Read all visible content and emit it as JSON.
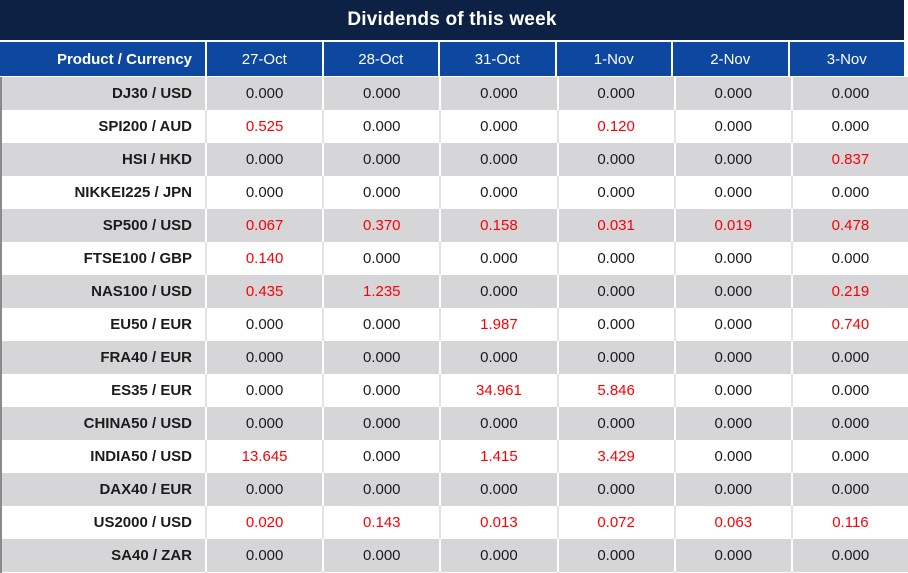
{
  "title": "Dividends of this week",
  "table": {
    "corner_header": "Product / Currency",
    "date_headers": [
      "27-Oct",
      "28-Oct",
      "31-Oct",
      "1-Nov",
      "2-Nov",
      "3-Nov"
    ],
    "rows": [
      {
        "product": "DJ30 / USD",
        "values": [
          "0.000",
          "0.000",
          "0.000",
          "0.000",
          "0.000",
          "0.000"
        ]
      },
      {
        "product": "SPI200 / AUD",
        "values": [
          "0.525",
          "0.000",
          "0.000",
          "0.120",
          "0.000",
          "0.000"
        ]
      },
      {
        "product": "HSI / HKD",
        "values": [
          "0.000",
          "0.000",
          "0.000",
          "0.000",
          "0.000",
          "0.837"
        ]
      },
      {
        "product": "NIKKEI225 / JPN",
        "values": [
          "0.000",
          "0.000",
          "0.000",
          "0.000",
          "0.000",
          "0.000"
        ]
      },
      {
        "product": "SP500 / USD",
        "values": [
          "0.067",
          "0.370",
          "0.158",
          "0.031",
          "0.019",
          "0.478"
        ]
      },
      {
        "product": "FTSE100 / GBP",
        "values": [
          "0.140",
          "0.000",
          "0.000",
          "0.000",
          "0.000",
          "0.000"
        ]
      },
      {
        "product": "NAS100 / USD",
        "values": [
          "0.435",
          "1.235",
          "0.000",
          "0.000",
          "0.000",
          "0.219"
        ]
      },
      {
        "product": "EU50 / EUR",
        "values": [
          "0.000",
          "0.000",
          "1.987",
          "0.000",
          "0.000",
          "0.740"
        ]
      },
      {
        "product": "FRA40 / EUR",
        "values": [
          "0.000",
          "0.000",
          "0.000",
          "0.000",
          "0.000",
          "0.000"
        ]
      },
      {
        "product": "ES35 / EUR",
        "values": [
          "0.000",
          "0.000",
          "34.961",
          "5.846",
          "0.000",
          "0.000"
        ]
      },
      {
        "product": "CHINA50 / USD",
        "values": [
          "0.000",
          "0.000",
          "0.000",
          "0.000",
          "0.000",
          "0.000"
        ]
      },
      {
        "product": "INDIA50 / USD",
        "values": [
          "13.645",
          "0.000",
          "1.415",
          "3.429",
          "0.000",
          "0.000"
        ]
      },
      {
        "product": "DAX40 / EUR",
        "values": [
          "0.000",
          "0.000",
          "0.000",
          "0.000",
          "0.000",
          "0.000"
        ]
      },
      {
        "product": "US2000 / USD",
        "values": [
          "0.020",
          "0.143",
          "0.013",
          "0.072",
          "0.063",
          "0.116"
        ]
      },
      {
        "product": "SA40 / ZAR",
        "values": [
          "0.000",
          "0.000",
          "0.000",
          "0.000",
          "0.000",
          "0.000"
        ]
      }
    ]
  },
  "colors": {
    "title_bg": "#0C2143",
    "header_bg": "#0D47A0",
    "header_text": "#FFFFFF",
    "row_bg": "#FFFFFF",
    "row_alt_bg": "#D6D6D8",
    "label_color": "#1C1C1C",
    "value_color": "#1C1C1C",
    "nonzero_value_color": "#FB0006"
  }
}
